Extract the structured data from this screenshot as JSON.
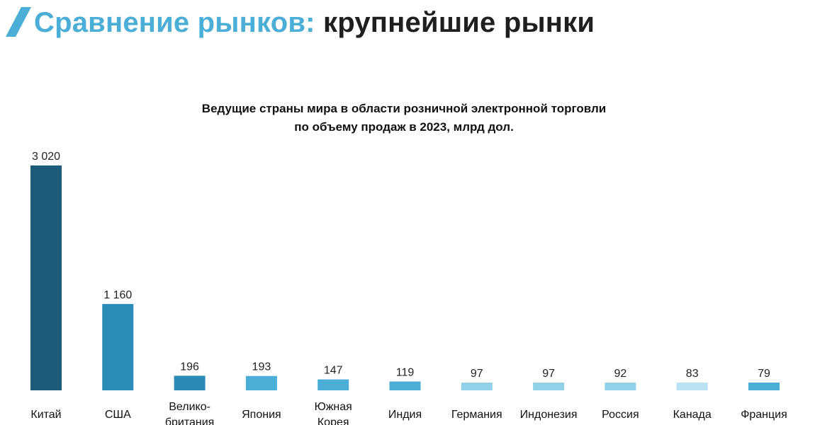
{
  "header": {
    "title_accent": "Сравнение рынков:",
    "title_rest": "крупнейшие рынки",
    "accent_color": "#4aaed6"
  },
  "chart_data": {
    "type": "bar",
    "title_line1": "Ведущие страны мира в области розничной электронной торговли",
    "title_line2": "по объему продаж в 2023, млрд дол.",
    "categories": [
      [
        "Китай"
      ],
      [
        "США"
      ],
      [
        "Велико-",
        "британия"
      ],
      [
        "Япония"
      ],
      [
        "Южная",
        "Корея"
      ],
      [
        "Индия"
      ],
      [
        "Германия"
      ],
      [
        "Индонезия"
      ],
      [
        "Россия"
      ],
      [
        "Канада"
      ],
      [
        "Франция"
      ]
    ],
    "values": [
      3020,
      1160,
      196,
      193,
      147,
      119,
      97,
      97,
      92,
      83,
      79
    ],
    "value_labels": [
      "3 020",
      "1 160",
      "196",
      "193",
      "147",
      "119",
      "97",
      "97",
      "92",
      "83",
      "79"
    ],
    "colors": [
      "#1b5d78",
      "#2a8db9",
      "#2b8bb6",
      "#4aaed6",
      "#4aaed6",
      "#4aaed6",
      "#93d1e8",
      "#93d1e8",
      "#93d1e8",
      "#b9e3f3",
      "#4aaed6"
    ],
    "xlabel": "",
    "ylabel": "",
    "ylim": [
      0,
      3020
    ],
    "grid": false,
    "legend": "none"
  }
}
